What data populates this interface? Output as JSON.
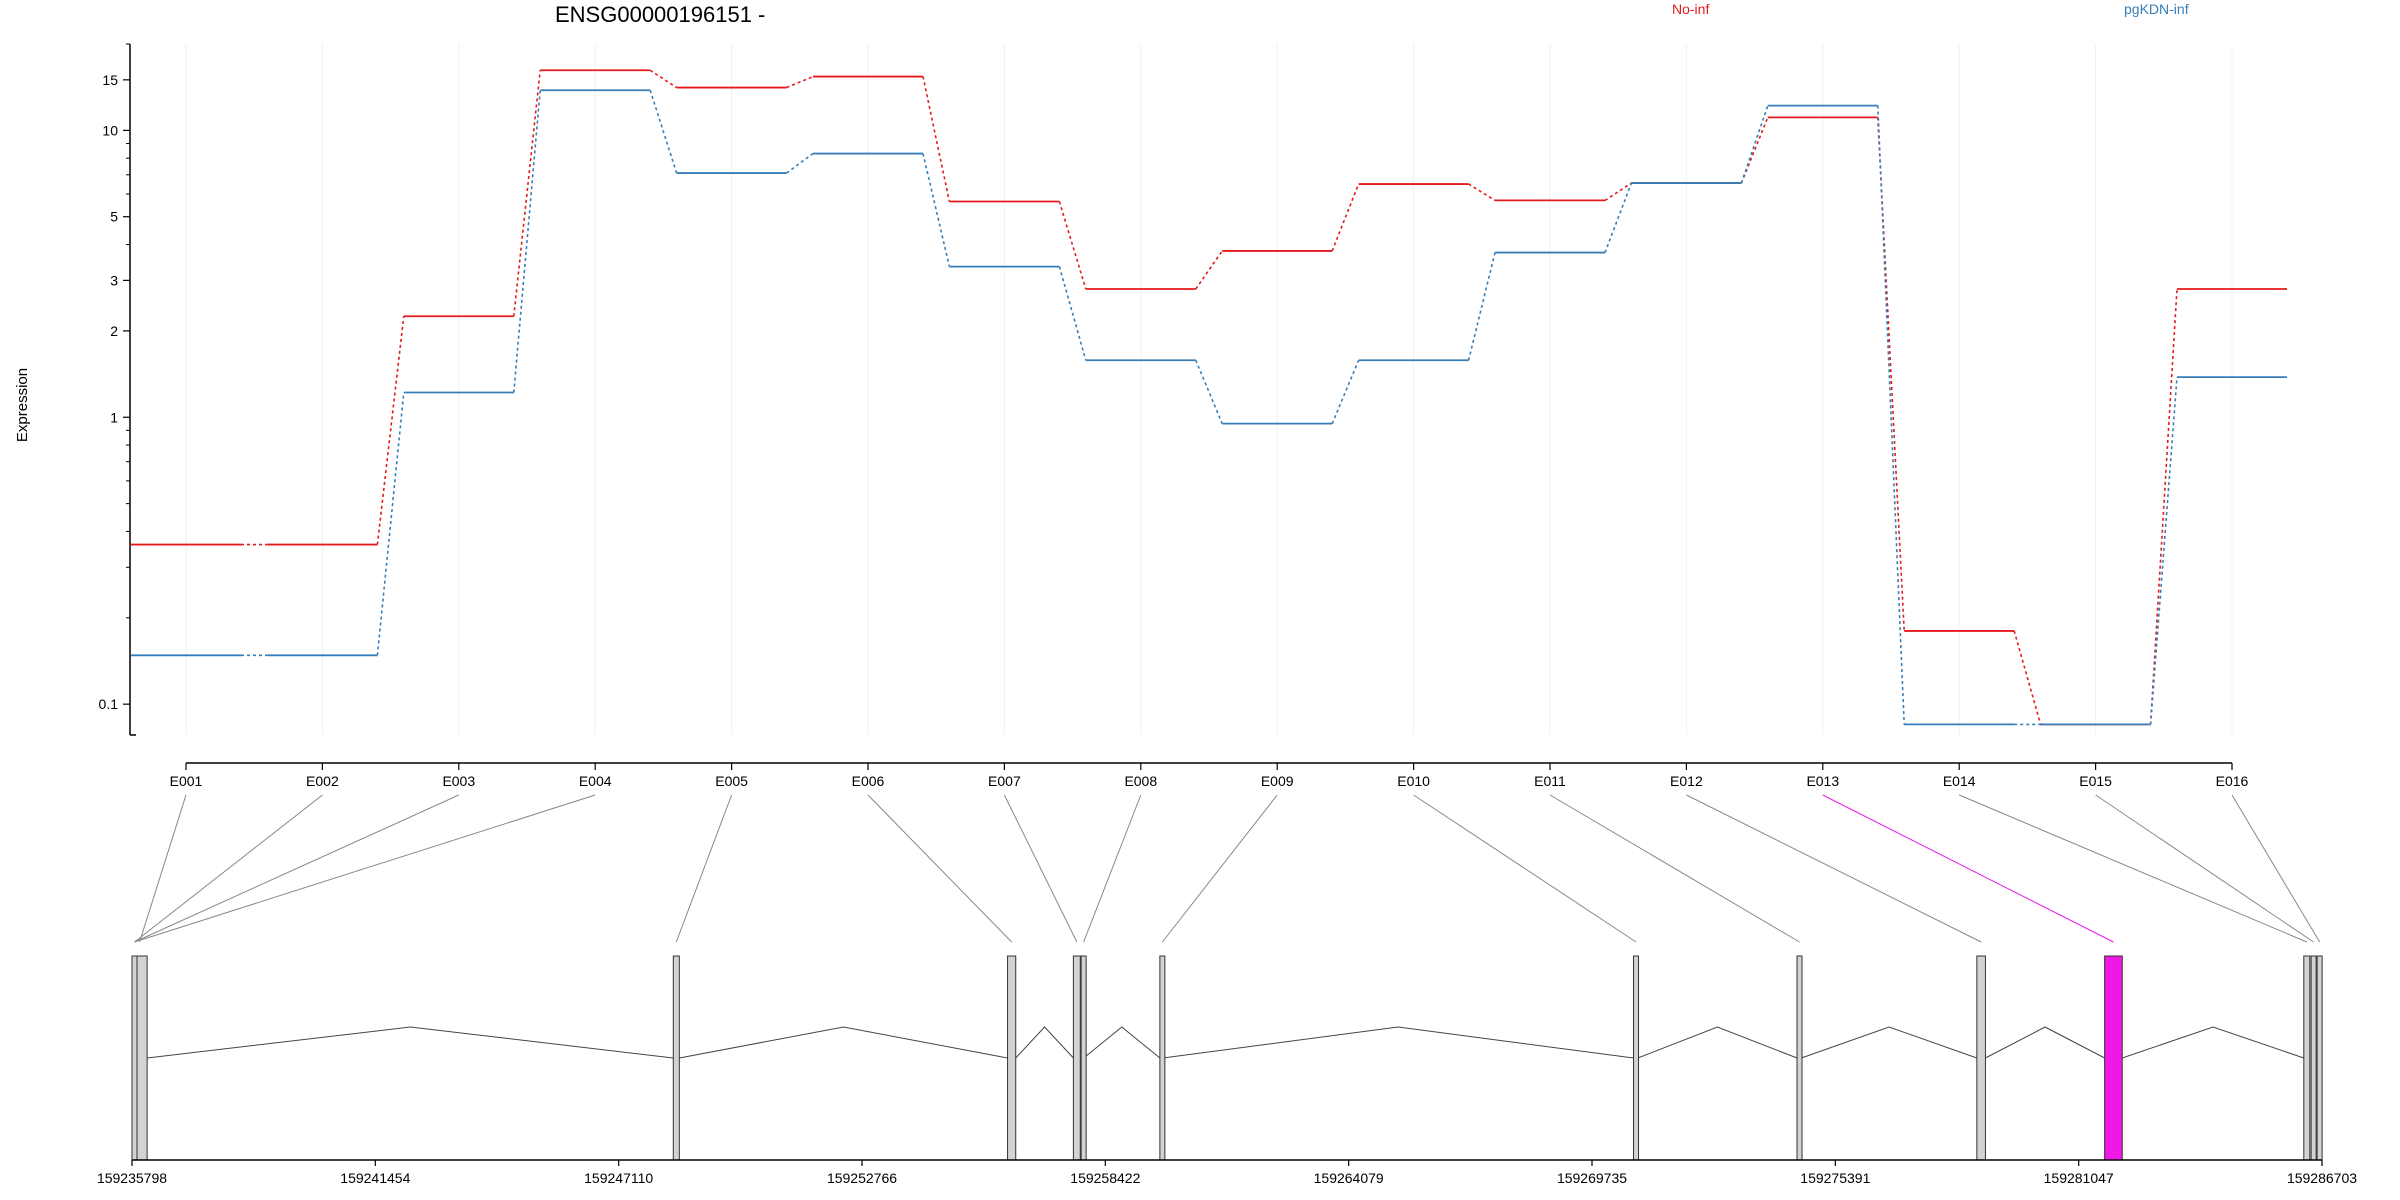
{
  "chart_data": {
    "type": "line",
    "title": "ENSG00000196151 -",
    "ylabel": "Expression",
    "xlabel": "",
    "yscale": "log",
    "ylim": [
      0.075,
      20
    ],
    "yticks": [
      {
        "value": 0.1,
        "label": "0.1"
      },
      {
        "value": 1,
        "label": "1"
      },
      {
        "value": 2,
        "label": "2"
      },
      {
        "value": 3,
        "label": "3"
      },
      {
        "value": 5,
        "label": "5"
      },
      {
        "value": 10,
        "label": "10"
      },
      {
        "value": 15,
        "label": "15"
      }
    ],
    "categories": [
      "E001",
      "E002",
      "E003",
      "E004",
      "E005",
      "E006",
      "E007",
      "E008",
      "E009",
      "E010",
      "E011",
      "E012",
      "E013",
      "E014",
      "E015",
      "E016"
    ],
    "series": [
      {
        "name": "No-inf",
        "color": "#e41a1c",
        "values": [
          0.36,
          0.36,
          2.25,
          16.2,
          14.1,
          15.4,
          5.65,
          2.8,
          3.8,
          6.5,
          5.7,
          6.55,
          11.1,
          0.18,
          0.085,
          2.8
        ]
      },
      {
        "name": "pgKDN-inf",
        "color": "#377eb8",
        "values": [
          0.148,
          0.148,
          1.22,
          13.8,
          7.1,
          8.3,
          3.35,
          1.58,
          0.95,
          1.58,
          3.75,
          6.55,
          12.2,
          0.085,
          0.085,
          1.38
        ]
      }
    ],
    "legend": {
      "placement": "top",
      "entries": [
        "No-inf",
        "pgKDN-inf"
      ]
    },
    "gene_model": {
      "coordinate_labels": [
        "159235798",
        "159241454",
        "159247110",
        "159252766",
        "159258422",
        "159264079",
        "159269735",
        "159275391",
        "159281047",
        "159286703"
      ],
      "coordinate_range": [
        159235798,
        159286703
      ],
      "highlight_exon": "E013",
      "highlight_color": "#f018e6",
      "exon_fill": "#d3d3d3",
      "exons": [
        {
          "id": "E001",
          "start": 159235798,
          "end": 159236150
        },
        {
          "id": "E002",
          "start": 159235798,
          "end": 159235830
        },
        {
          "id": "E003",
          "start": 159235798,
          "end": 159235830
        },
        {
          "id": "E004",
          "start": 159235798,
          "end": 159235830
        },
        {
          "id": "E005",
          "start": 159248380,
          "end": 159248520
        },
        {
          "id": "E006",
          "start": 159256150,
          "end": 159256340
        },
        {
          "id": "E007",
          "start": 159257680,
          "end": 159257840
        },
        {
          "id": "E008",
          "start": 159257860,
          "end": 159257920
        },
        {
          "id": "E009",
          "start": 159259690,
          "end": 159259760
        },
        {
          "id": "E010",
          "start": 159270700,
          "end": 159270800
        },
        {
          "id": "E011",
          "start": 159274500,
          "end": 159274600
        },
        {
          "id": "E012",
          "start": 159278680,
          "end": 159278880
        },
        {
          "id": "E013",
          "start": 159281650,
          "end": 159282060
        },
        {
          "id": "E014",
          "start": 159286280,
          "end": 159286420
        },
        {
          "id": "E015",
          "start": 159286450,
          "end": 159286560
        },
        {
          "id": "E016",
          "start": 159286590,
          "end": 159286703
        }
      ],
      "introns": [
        [
          159236150,
          159248380
        ],
        [
          159248520,
          159256150
        ],
        [
          159256340,
          159257680
        ],
        [
          159257920,
          159259690
        ],
        [
          159259760,
          159270700
        ],
        [
          159270800,
          159274500
        ],
        [
          159274600,
          159278680
        ],
        [
          159278880,
          159281650
        ],
        [
          159282060,
          159286280
        ]
      ]
    }
  }
}
